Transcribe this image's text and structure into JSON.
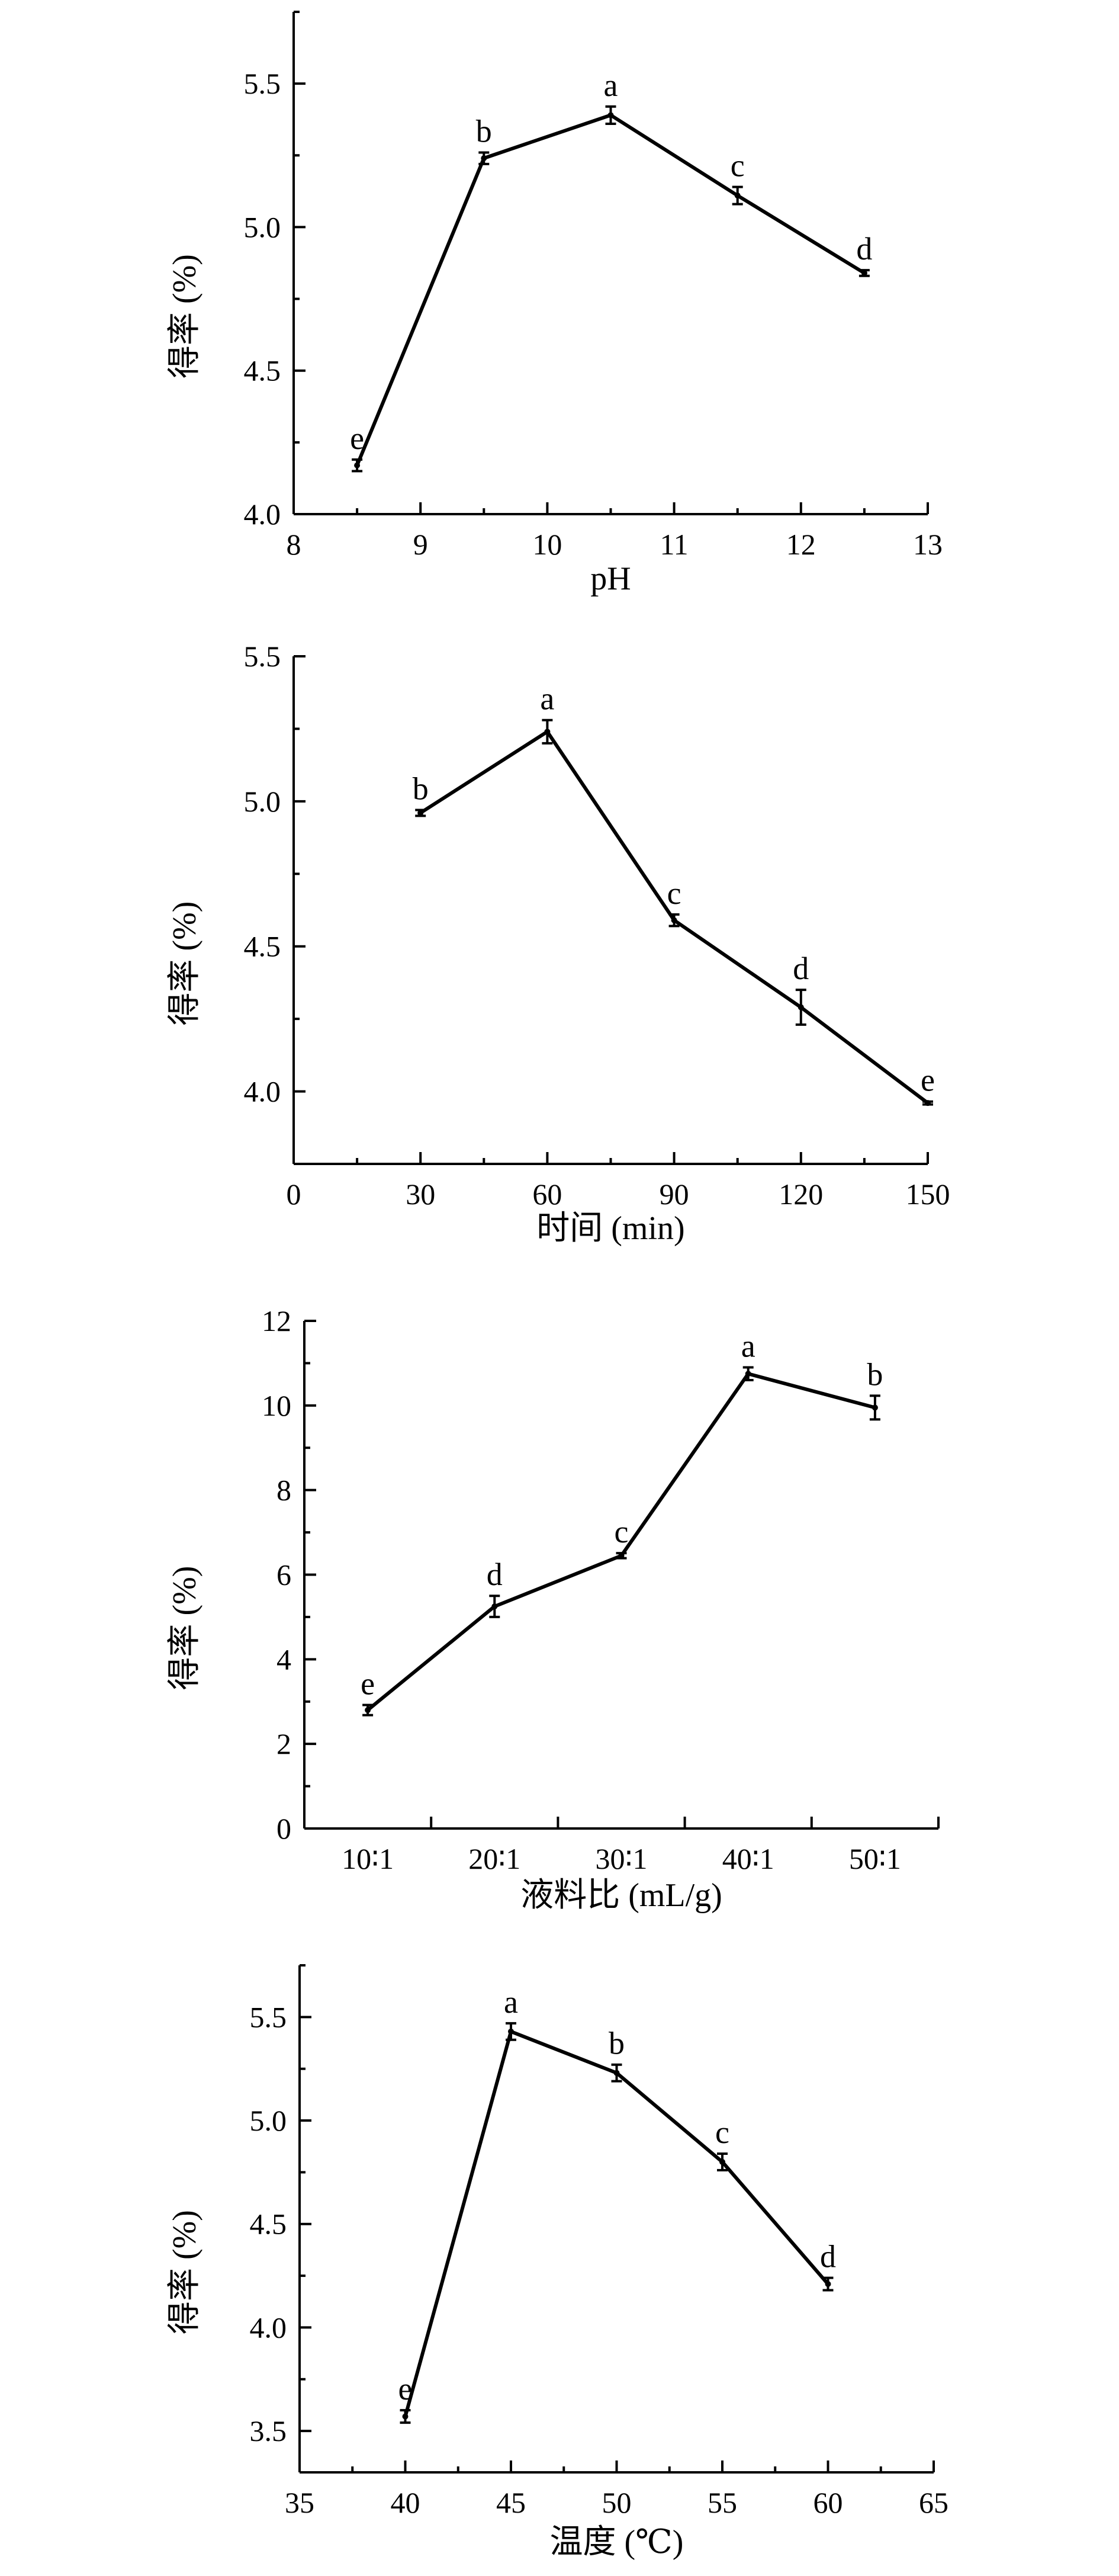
{
  "chart_data": [
    {
      "type": "line",
      "title": "",
      "xlabel": "pH",
      "ylabel": "得率 (%)",
      "x": [
        8.5,
        9.5,
        10.5,
        11.5,
        12.5
      ],
      "values": [
        4.17,
        5.24,
        5.39,
        5.11,
        4.84
      ],
      "errors": [
        0.02,
        0.02,
        0.03,
        0.03,
        0.01
      ],
      "significance": [
        "e",
        "b",
        "a",
        "c",
        "d"
      ],
      "xlim": [
        8,
        13
      ],
      "ylim": [
        4.0,
        5.75
      ],
      "x_ticks": [
        8,
        9,
        10,
        11,
        12,
        13
      ],
      "x_tick_labels": [
        "8",
        "9",
        "10",
        "11",
        "12",
        "13"
      ],
      "y_ticks": [
        4.0,
        4.5,
        5.0,
        5.5
      ],
      "y_tick_labels": [
        "4.0",
        "4.5",
        "5.0",
        "5.5"
      ],
      "y_minor_step": 0.25
    },
    {
      "type": "line",
      "title": "",
      "xlabel": "时间 (min)",
      "ylabel": "得率 (%)",
      "x": [
        30,
        60,
        90,
        120,
        150
      ],
      "values": [
        4.96,
        5.24,
        4.59,
        4.29,
        3.96
      ],
      "errors": [
        0.01,
        0.04,
        0.02,
        0.06,
        0.005
      ],
      "significance": [
        "b",
        "a",
        "c",
        "d",
        "e"
      ],
      "xlim": [
        0,
        150
      ],
      "ylim": [
        3.75,
        5.5
      ],
      "x_ticks": [
        0,
        30,
        60,
        90,
        120,
        150
      ],
      "x_tick_labels": [
        "0",
        "30",
        "60",
        "90",
        "120",
        "150"
      ],
      "y_ticks": [
        4.0,
        4.5,
        5.0,
        5.5
      ],
      "y_tick_labels": [
        "4.0",
        "4.5",
        "5.0",
        "5.5"
      ],
      "y_minor_step": 0.25
    },
    {
      "type": "line",
      "title": "",
      "xlabel": "液料比 (mL/g)",
      "ylabel": "得率 (%)",
      "x": [
        10,
        20,
        30,
        40,
        50
      ],
      "values": [
        2.8,
        5.25,
        6.45,
        10.75,
        9.95
      ],
      "errors": [
        0.12,
        0.25,
        0.06,
        0.15,
        0.28
      ],
      "significance": [
        "e",
        "d",
        "c",
        "a",
        "b"
      ],
      "xlim": [
        5,
        55
      ],
      "ylim": [
        0,
        12
      ],
      "x_ticks": [
        10,
        20,
        30,
        40,
        50
      ],
      "x_tick_labels": [
        "10∶1",
        "20∶1",
        "30∶1",
        "40∶1",
        "50∶1"
      ],
      "x_boundary_ticks": [
        5,
        15,
        25,
        35,
        45,
        55
      ],
      "y_ticks": [
        0,
        2,
        4,
        6,
        8,
        10,
        12
      ],
      "y_tick_labels": [
        "0",
        "2",
        "4",
        "6",
        "8",
        "10",
        "12"
      ],
      "y_minor_step": 1
    },
    {
      "type": "line",
      "title": "",
      "xlabel": "温度 (℃)",
      "ylabel": "得率 (%)",
      "x": [
        40,
        45,
        50,
        55,
        60
      ],
      "values": [
        3.57,
        5.43,
        5.23,
        4.8,
        4.21
      ],
      "errors": [
        0.03,
        0.04,
        0.04,
        0.04,
        0.03
      ],
      "significance": [
        "e",
        "a",
        "b",
        "c",
        "d"
      ],
      "xlim": [
        35,
        65
      ],
      "ylim": [
        3.3,
        5.75
      ],
      "x_ticks": [
        35,
        40,
        45,
        50,
        55,
        60,
        65
      ],
      "x_tick_labels": [
        "35",
        "40",
        "45",
        "50",
        "55",
        "60",
        "65"
      ],
      "y_ticks": [
        3.5,
        4.0,
        4.5,
        5.0,
        5.5
      ],
      "y_tick_labels": [
        "3.5",
        "4.0",
        "4.5",
        "5.0",
        "5.5"
      ],
      "y_minor_step": 0.25
    }
  ]
}
